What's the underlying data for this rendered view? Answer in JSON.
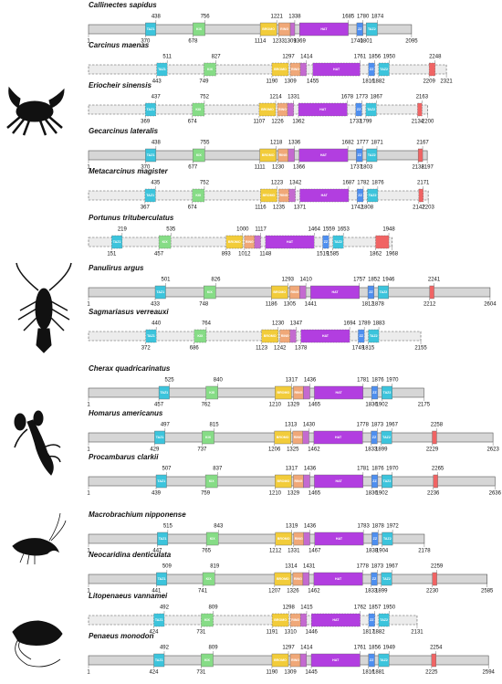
{
  "domain_types": [
    {
      "label": "TAZ1",
      "color": "#3cc4dc"
    },
    {
      "label": "KIX",
      "color": "#86dc86"
    },
    {
      "label": "BROMO",
      "color": "#f2cc3a"
    },
    {
      "label": "RING",
      "color": "#f0a878"
    },
    {
      "color": "#c46ad0"
    },
    {
      "label": "HAT",
      "color": "#b23ee0"
    },
    {
      "label": "ZZ",
      "color": "#4e8ff0"
    },
    {
      "label": "TAZ2",
      "color": "#3cc4dc"
    },
    {
      "color": "#f06464"
    }
  ],
  "rows": [
    {
      "name": "Callinectes sapidus",
      "dashed": false,
      "first": 1,
      "last": 2095,
      "domains": [
        [
          370,
          438
        ],
        [
          678,
          756
        ],
        [
          1114,
          1221
        ],
        [
          1233,
          null
        ],
        [
          1309,
          1338
        ],
        [
          1369,
          1685
        ],
        [
          1740,
          1780
        ],
        [
          1801,
          1874
        ],
        null
      ]
    },
    {
      "name": "Carcinus maenas",
      "dashed": true,
      "last": 2321,
      "domains": [
        [
          443,
          511
        ],
        [
          749,
          827
        ],
        [
          1190,
          1297
        ],
        [
          1309,
          null
        ],
        [
          null,
          1414
        ],
        [
          1455,
          1761
        ],
        [
          1816,
          1856
        ],
        [
          1882,
          1950
        ],
        [
          2209,
          2248
        ]
      ]
    },
    {
      "name": "Eriocheir sinensis",
      "dashed": true,
      "last": 2200,
      "domains": [
        [
          369,
          437
        ],
        [
          674,
          752
        ],
        [
          1107,
          1214
        ],
        [
          1226,
          null
        ],
        [
          null,
          1331
        ],
        [
          1362,
          1678
        ],
        [
          1733,
          1773
        ],
        [
          1799,
          1867
        ],
        [
          2134,
          2163
        ]
      ]
    },
    {
      "name": "Gecarcinus lateralis",
      "dashed": false,
      "first": 1,
      "last": 2197,
      "domains": [
        [
          370,
          438
        ],
        [
          677,
          755
        ],
        [
          1111,
          1218
        ],
        [
          1230,
          null
        ],
        [
          null,
          1336
        ],
        [
          1366,
          1682
        ],
        [
          1737,
          1777
        ],
        [
          1803,
          1871
        ],
        [
          2138,
          2167
        ]
      ]
    },
    {
      "name": "Metacarcinus magister",
      "dashed": true,
      "last": 2203,
      "domains": [
        [
          367,
          435
        ],
        [
          674,
          752
        ],
        [
          1116,
          1223
        ],
        [
          1235,
          null
        ],
        [
          null,
          1342
        ],
        [
          1371,
          1687
        ],
        [
          1742,
          1782
        ],
        [
          1808,
          1876
        ],
        [
          2142,
          2171
        ]
      ]
    },
    {
      "name": "Portunus trituberculatus",
      "dashed": true,
      "last": 1968,
      "domains": [
        [
          151,
          219
        ],
        [
          457,
          535
        ],
        [
          893,
          1000
        ],
        [
          1012,
          null
        ],
        [
          null,
          1117
        ],
        [
          1148,
          1464
        ],
        [
          1519,
          1559
        ],
        [
          1585,
          1653
        ],
        [
          1862,
          1948
        ]
      ]
    },
    {
      "name": "Panulirus argus",
      "dashed": false,
      "first": 1,
      "last": 2604,
      "domains": [
        [
          433,
          501
        ],
        [
          748,
          826
        ],
        [
          1186,
          1293
        ],
        [
          1305,
          null
        ],
        [
          null,
          1410
        ],
        [
          1441,
          1757
        ],
        [
          1812,
          1852
        ],
        [
          1878,
          1946
        ],
        [
          2212,
          2241
        ]
      ]
    },
    {
      "name": "Sagmariasus verreauxi",
      "dashed": true,
      "last": 2155,
      "domains": [
        [
          372,
          440
        ],
        [
          686,
          764
        ],
        [
          1123,
          1230
        ],
        [
          1242,
          null
        ],
        [
          null,
          1347
        ],
        [
          1378,
          1694
        ],
        [
          1749,
          1789
        ],
        [
          1815,
          1883
        ],
        null
      ]
    },
    {
      "name": "Cherax quadricarinatus",
      "dashed": false,
      "first": 1,
      "last": 2175,
      "domains": [
        [
          457,
          525
        ],
        [
          762,
          840
        ],
        [
          1210,
          1317
        ],
        [
          1329,
          null
        ],
        [
          null,
          1436
        ],
        [
          1465,
          1781
        ],
        [
          1836,
          1876
        ],
        [
          1902,
          1970
        ],
        null
      ]
    },
    {
      "name": "Homarus americanus",
      "dashed": false,
      "first": 1,
      "last": 2623,
      "domains": [
        [
          429,
          497
        ],
        [
          737,
          815
        ],
        [
          1206,
          1313
        ],
        [
          1325,
          null
        ],
        [
          null,
          1430
        ],
        [
          1462,
          1778
        ],
        [
          1833,
          1873
        ],
        [
          1899,
          1967
        ],
        [
          2229,
          2258
        ]
      ]
    },
    {
      "name": "Procambarus clarkii",
      "dashed": false,
      "first": 1,
      "last": 2636,
      "domains": [
        [
          439,
          507
        ],
        [
          759,
          837
        ],
        [
          1210,
          1317
        ],
        [
          1329,
          null
        ],
        [
          null,
          1436
        ],
        [
          1465,
          1781
        ],
        [
          1836,
          1876
        ],
        [
          1902,
          1970
        ],
        [
          2236,
          2265
        ]
      ]
    },
    {
      "name": "Macrobrachium nipponense",
      "dashed": false,
      "first": 1,
      "last": 2178,
      "domains": [
        [
          447,
          515
        ],
        [
          765,
          843
        ],
        [
          1212,
          1319
        ],
        [
          1331,
          null
        ],
        [
          null,
          1436
        ],
        [
          1467,
          1783
        ],
        [
          1838,
          1878
        ],
        [
          1904,
          1972
        ],
        null
      ]
    },
    {
      "name": "Neocaridina denticulata",
      "dashed": false,
      "first": 1,
      "last": 2585,
      "domains": [
        [
          441,
          509
        ],
        [
          741,
          819
        ],
        [
          1207,
          1314
        ],
        [
          1326,
          null
        ],
        [
          null,
          1431
        ],
        [
          1462,
          1778
        ],
        [
          1833,
          1873
        ],
        [
          1899,
          1967
        ],
        [
          2230,
          2259
        ]
      ]
    },
    {
      "name": "Litopenaeus vannamei",
      "dashed": true,
      "last": 2131,
      "domains": [
        [
          424,
          492
        ],
        [
          731,
          809
        ],
        [
          1191,
          1298
        ],
        [
          1310,
          null
        ],
        [
          null,
          1415
        ],
        [
          1446,
          1762
        ],
        [
          1817,
          1857
        ],
        [
          1882,
          1950
        ],
        null
      ]
    },
    {
      "name": "Penaeus monodon",
      "dashed": false,
      "first": 1,
      "last": 2594,
      "domains": [
        [
          424,
          492
        ],
        [
          731,
          809
        ],
        [
          1190,
          1297
        ],
        [
          1309,
          null
        ],
        [
          null,
          1414
        ],
        [
          1445,
          1761
        ],
        [
          1816,
          1856
        ],
        [
          1881,
          1949
        ],
        [
          2225,
          2254
        ]
      ]
    }
  ]
}
